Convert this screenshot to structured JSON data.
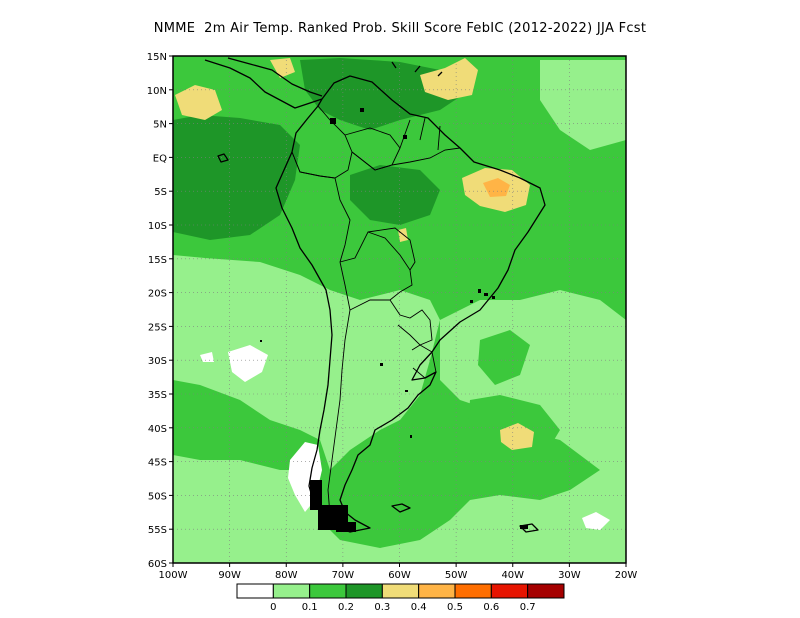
{
  "title": "NMME  2m Air Temp. Ranked Prob. Skill Score FebIC (2012-2022) JJA Fcst",
  "map": {
    "lat_labels": [
      "15N",
      "10N",
      "5N",
      "EQ",
      "5S",
      "10S",
      "15S",
      "20S",
      "25S",
      "30S",
      "35S",
      "40S",
      "45S",
      "50S",
      "55S",
      "60S"
    ],
    "lon_labels": [
      "100W",
      "90W",
      "80W",
      "70W",
      "60W",
      "50W",
      "40W",
      "30W",
      "20W"
    ],
    "lat_range": [
      -60,
      15
    ],
    "lon_range": [
      -100,
      -20
    ],
    "gridlines": "dotted",
    "fill_regions": [
      {
        "name": "background-field",
        "level": "0.1-0.2",
        "color": "#3cc83c"
      },
      {
        "name": "south-pacific-field",
        "level": "0.0-0.1",
        "color": "#96f08c"
      },
      {
        "name": "equatorial-pacific-field",
        "level": "0.2-0.3",
        "color": "#1e9628"
      },
      {
        "name": "amazon-field",
        "level": "0.1-0.2",
        "color": "#3cc83c"
      },
      {
        "name": "northeast-brazil-warm",
        "level": "0.3-0.4",
        "color": "#f0dc78"
      },
      {
        "name": "northeast-brazil-core",
        "level": "0.4-0.5",
        "color": "#ffb446"
      },
      {
        "name": "caribbean-warm",
        "level": "0.3-0.4",
        "color": "#f0dc78"
      },
      {
        "name": "south-atlantic-warm",
        "level": "0.3-0.4",
        "color": "#f0dc78"
      },
      {
        "name": "patagonia-white",
        "level": "< 0",
        "color": "#ffffff"
      }
    ]
  },
  "colorbar": {
    "colors": [
      "#ffffff",
      "#96f08c",
      "#3cc83c",
      "#1e9628",
      "#f0dc78",
      "#ffb446",
      "#ff6e00",
      "#e61400",
      "#a50000"
    ],
    "labels": [
      "0",
      "0.1",
      "0.2",
      "0.3",
      "0.4",
      "0.5",
      "0.6",
      "0.7"
    ]
  }
}
